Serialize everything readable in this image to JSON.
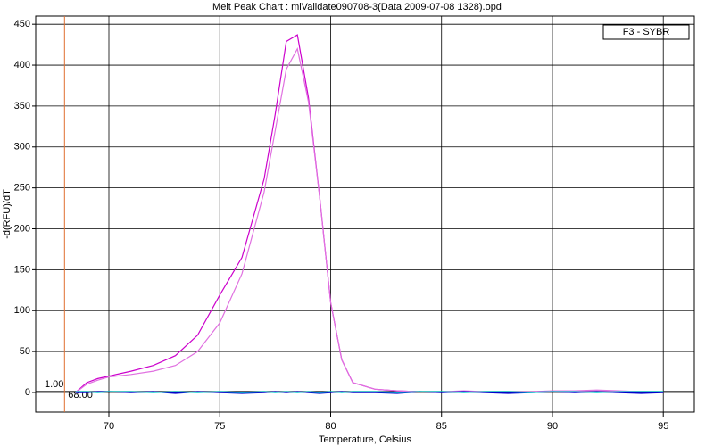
{
  "chart_data": {
    "type": "line",
    "title": "Melt Peak Chart : miValidate090708-3(Data 2009-07-08 1328).opd",
    "x_label": "Temperature, Celsius",
    "y_label": "-d(RFU)/dT",
    "legend_label": "F3 - SYBR",
    "threshold": {
      "value": 1,
      "label": "1.00"
    },
    "start_temp": {
      "value": 68,
      "label": "68.00"
    },
    "x": [
      68.5,
      69,
      69.5,
      70,
      71,
      72,
      73,
      74,
      75,
      76,
      77,
      77.5,
      78,
      78.5,
      79,
      79.5,
      80,
      80.5,
      81,
      82,
      83,
      84,
      85,
      86,
      87,
      88,
      89,
      90,
      91,
      92,
      93,
      94,
      95
    ],
    "series": [
      {
        "color": "#cc00cc",
        "values": [
          0,
          12,
          17,
          20,
          26,
          33,
          45,
          70,
          119,
          165,
          261,
          340,
          429,
          437,
          360,
          240,
          110,
          40,
          12,
          4,
          2,
          1,
          1,
          1,
          1,
          1,
          1,
          1,
          1,
          1,
          1,
          1,
          1
        ]
      },
      {
        "color": "#e070e0",
        "values": [
          0,
          10,
          15,
          19,
          22,
          26,
          33,
          50,
          85,
          145,
          245,
          320,
          395,
          420,
          355,
          240,
          110,
          40,
          12,
          4,
          2,
          1,
          1,
          2,
          1,
          1,
          1,
          2,
          2,
          3,
          2,
          1,
          0
        ]
      },
      {
        "color": "#0000cc",
        "values": [
          0,
          0,
          1,
          1,
          0,
          1,
          -1,
          1,
          0,
          -1,
          0,
          1,
          0,
          1,
          0,
          -1,
          0,
          1,
          0,
          0,
          -1,
          1,
          0,
          1,
          0,
          -1,
          0,
          1,
          0,
          1,
          0,
          -1,
          0
        ]
      },
      {
        "color": "#00cccc",
        "values": [
          1,
          1,
          0,
          1,
          1,
          0,
          1,
          0,
          1,
          0,
          1,
          0,
          1,
          0,
          1,
          0,
          1,
          0,
          1,
          1,
          0,
          1,
          1,
          0,
          1,
          1,
          0,
          1,
          1,
          0,
          1,
          1,
          1
        ]
      }
    ],
    "xlim": [
      66.7,
      96.4
    ],
    "ylim": [
      -24,
      460
    ],
    "xticks": [
      70,
      75,
      80,
      85,
      90,
      95
    ],
    "yticks": [
      0,
      50,
      100,
      150,
      200,
      250,
      300,
      350,
      400,
      450
    ],
    "grid": true
  }
}
